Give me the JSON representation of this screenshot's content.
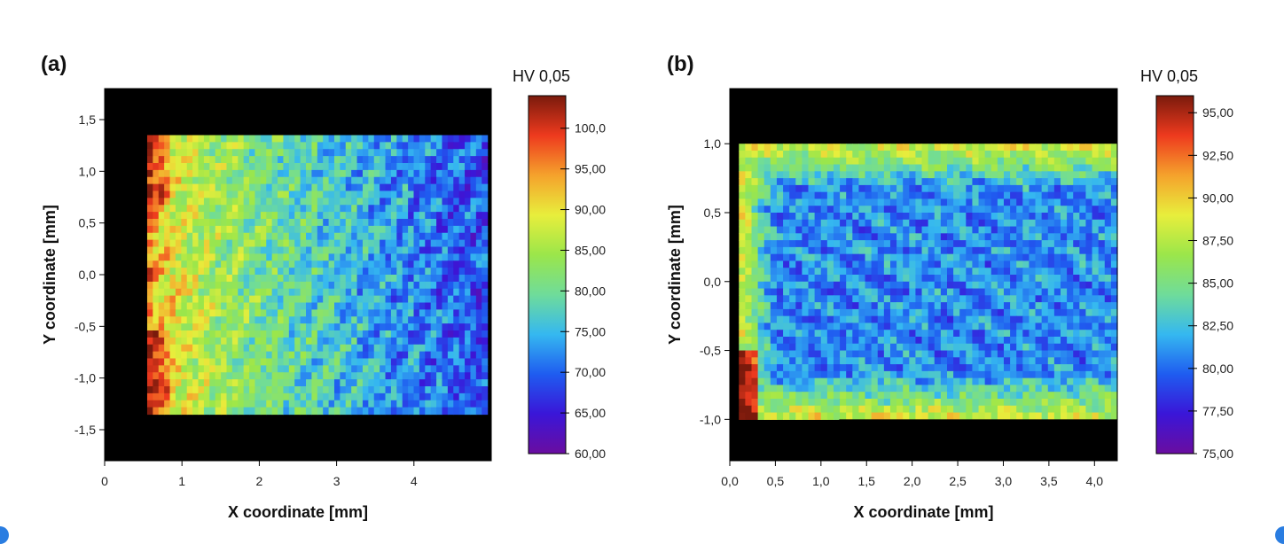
{
  "chart_data": [
    {
      "type": "heatmap",
      "panel_label": "(a)",
      "xlabel": "X coordinate [mm]",
      "ylabel": "Y coordinate [mm]",
      "xlim": [
        0,
        5.0
      ],
      "ylim": [
        -1.8,
        1.8
      ],
      "xticks": [
        "0",
        "1",
        "2",
        "3",
        "4"
      ],
      "xtick_values": [
        0,
        1,
        2,
        3,
        4
      ],
      "yticks": [
        "1,5",
        "1,0",
        "0,5",
        "0,0",
        "-0,5",
        "-1,0",
        "-1,5"
      ],
      "ytick_values": [
        1.5,
        1.0,
        0.5,
        0.0,
        -0.5,
        -1.0,
        -1.5
      ],
      "background": "#000000",
      "specimen": {
        "x_min": 0.55,
        "x_max": 4.95,
        "y_min": -1.35,
        "y_max": 1.35
      },
      "colorbar": {
        "title": "HV 0,05",
        "min": 60,
        "max": 104,
        "ticks": [
          "100,0",
          "95,00",
          "90,00",
          "85,00",
          "80,00",
          "75,00",
          "70,00",
          "65,00",
          "60,00"
        ],
        "tick_values": [
          100,
          95,
          90,
          85,
          80,
          75,
          70,
          65,
          60
        ]
      },
      "hardness_trend": "high (95-100) near x≈0.7-1 mm, decreasing to 65-75 at x>3 mm"
    },
    {
      "type": "heatmap",
      "panel_label": "(b)",
      "xlabel": "X coordinate [mm]",
      "ylabel": "Y coordinate [mm]",
      "xlim": [
        0.0,
        4.25
      ],
      "ylim": [
        -1.3,
        1.4
      ],
      "xticks": [
        "0,0",
        "0,5",
        "1,0",
        "1,5",
        "2,0",
        "2,5",
        "3,0",
        "3,5",
        "4,0"
      ],
      "xtick_values": [
        0.0,
        0.5,
        1.0,
        1.5,
        2.0,
        2.5,
        3.0,
        3.5,
        4.0
      ],
      "yticks": [
        "1,0",
        "0,5",
        "0,0",
        "-0,5",
        "-1,0"
      ],
      "ytick_values": [
        1.0,
        0.5,
        0.0,
        -0.5,
        -1.0
      ],
      "background": "#000000",
      "specimen": {
        "x_min": 0.1,
        "x_max": 4.25,
        "y_min": -1.0,
        "y_max": 1.0
      },
      "colorbar": {
        "title": "HV 0,05",
        "min": 75,
        "max": 96,
        "ticks": [
          "95,00",
          "92,50",
          "90,00",
          "87,50",
          "85,00",
          "82,50",
          "80,00",
          "77,50",
          "75,00"
        ],
        "tick_values": [
          95,
          92.5,
          90,
          87.5,
          85,
          82.5,
          80,
          77.5,
          75
        ]
      },
      "hardness_trend": "82-87 along edges, 76-80 in interior"
    }
  ],
  "colors": {
    "colormap": [
      "#6a0da0",
      "#3a16d8",
      "#1f5cf0",
      "#35b8f0",
      "#6fdc9a",
      "#9be64a",
      "#e8ee3c",
      "#f5a22c",
      "#ee3a1e",
      "#7a1a0c"
    ],
    "accent_dot": "#2a7de1"
  }
}
